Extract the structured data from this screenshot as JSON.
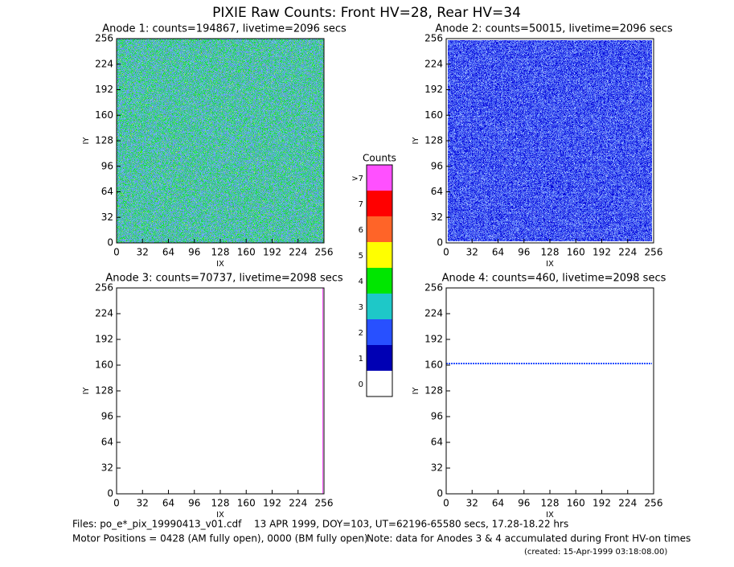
{
  "title": "PIXIE Raw Counts:  Front HV=28, Rear HV=34",
  "chart_data": [
    {
      "type": "heatmap",
      "title": "Anode 1: counts=194867, livetime=2096 secs",
      "xlabel": "IX",
      "ylabel": "IY",
      "xlim": [
        0,
        256
      ],
      "ylim": [
        0,
        256
      ],
      "xticks": [
        0,
        32,
        64,
        96,
        128,
        160,
        192,
        224,
        256
      ],
      "yticks": [
        0,
        32,
        64,
        96,
        128,
        160,
        192,
        224,
        256
      ]
    },
    {
      "type": "heatmap",
      "title": "Anode 2: counts=50015, livetime=2096 secs",
      "xlabel": "IX",
      "ylabel": "IY",
      "xlim": [
        0,
        256
      ],
      "ylim": [
        0,
        256
      ],
      "xticks": [
        0,
        32,
        64,
        96,
        128,
        160,
        192,
        224,
        256
      ],
      "yticks": [
        0,
        32,
        64,
        96,
        128,
        160,
        192,
        224,
        256
      ]
    },
    {
      "type": "heatmap",
      "title": "Anode 3: counts=70737, livetime=2098 secs",
      "xlabel": "IX",
      "ylabel": "IY",
      "xlim": [
        0,
        256
      ],
      "ylim": [
        0,
        256
      ],
      "xticks": [
        0,
        32,
        64,
        96,
        128,
        160,
        192,
        224,
        256
      ],
      "yticks": [
        0,
        32,
        64,
        96,
        128,
        160,
        192,
        224,
        256
      ]
    },
    {
      "type": "heatmap",
      "title": "Anode 4: counts=460, livetime=2098 secs",
      "xlabel": "IX",
      "ylabel": "IY",
      "xlim": [
        0,
        256
      ],
      "ylim": [
        0,
        256
      ],
      "xticks": [
        0,
        32,
        64,
        96,
        128,
        160,
        192,
        224,
        256
      ],
      "yticks": [
        0,
        32,
        64,
        96,
        128,
        160,
        192,
        224,
        256
      ]
    }
  ],
  "colorbar": {
    "title": "Counts",
    "levels": [
      "0",
      "1",
      "2",
      "3",
      "4",
      "5",
      "6",
      "7",
      ">7"
    ],
    "colors": [
      "#ffffff",
      "#0000b4",
      "#2850ff",
      "#1ec8c8",
      "#00e600",
      "#ffff00",
      "#ff6428",
      "#ff0000",
      "#ff50ff"
    ]
  },
  "footer": {
    "files": "Files: po_e*_pix_19990413_v01.cdf",
    "date": "13 APR 1999, DOY=103, UT=62196-65580 secs, 17.28-18.22 hrs",
    "motor": "Motor Positions = 0428 (AM fully open), 0000 (BM fully open)",
    "note": "Note: data for Anodes 3 & 4 accumulated during Front HV-on times",
    "created": "(created: 15-Apr-1999 03:18:08.00)"
  }
}
